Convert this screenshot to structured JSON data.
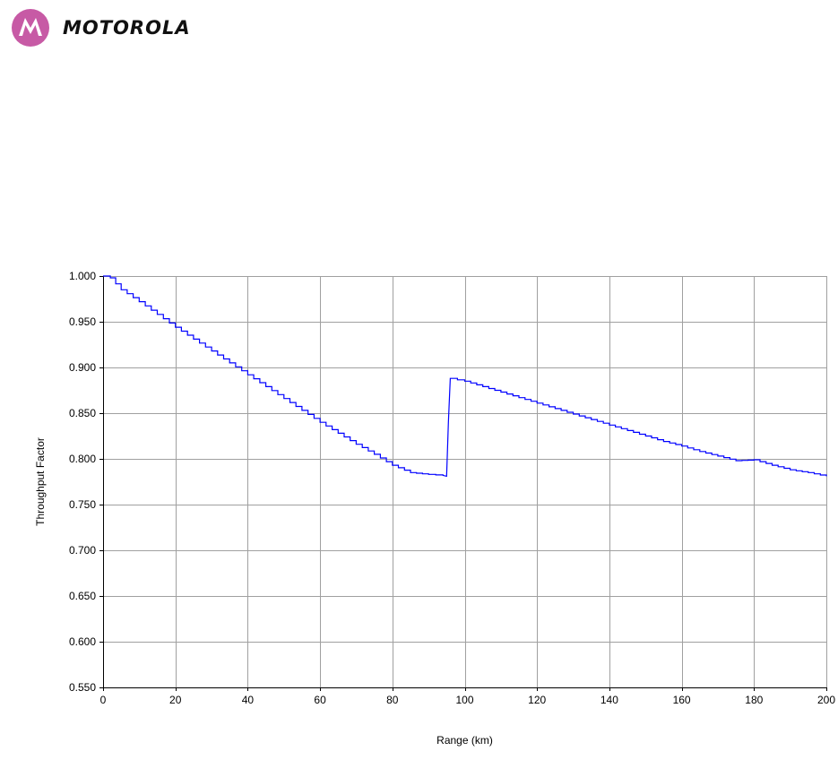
{
  "brand": {
    "name": "MOTOROLA",
    "logo_icon": "motorola-batwing-icon",
    "logo_color": "#c75aa5"
  },
  "chart_data": {
    "type": "line",
    "title": "",
    "xlabel": "Range (km)",
    "ylabel": "Throughput Factor",
    "xlim": [
      0,
      200
    ],
    "ylim": [
      0.55,
      1.0
    ],
    "xticks": [
      0,
      20,
      40,
      60,
      80,
      100,
      120,
      140,
      160,
      180,
      200
    ],
    "xtick_labels": [
      "0",
      "20",
      "40",
      "60",
      "80",
      "100",
      "120",
      "140",
      "160",
      "180",
      "200"
    ],
    "yticks": [
      0.55,
      0.6,
      0.65,
      0.7,
      0.75,
      0.8,
      0.85,
      0.9,
      0.95,
      1.0
    ],
    "ytick_labels": [
      "0.550",
      "0.600",
      "0.650",
      "0.700",
      "0.750",
      "0.800",
      "0.850",
      "0.900",
      "0.950",
      "1.000"
    ],
    "grid": true,
    "line_color": "#0000ff",
    "series": [
      {
        "x": [
          0,
          2,
          5,
          10,
          15,
          20,
          25,
          30,
          35,
          40,
          45,
          50,
          55,
          60,
          65,
          70,
          75,
          80,
          85,
          90,
          94,
          95,
          95.5,
          96,
          100,
          105,
          110,
          115,
          120,
          125,
          130,
          135,
          140,
          145,
          150,
          155,
          160,
          165,
          170,
          175,
          180,
          185,
          190,
          195,
          200
        ],
        "y": [
          1.0,
          0.998,
          0.985,
          0.972,
          0.958,
          0.944,
          0.931,
          0.918,
          0.905,
          0.892,
          0.879,
          0.866,
          0.853,
          0.84,
          0.828,
          0.816,
          0.805,
          0.793,
          0.785,
          0.783,
          0.782,
          0.781,
          0.84,
          0.888,
          0.885,
          0.879,
          0.873,
          0.867,
          0.861,
          0.855,
          0.849,
          0.843,
          0.837,
          0.831,
          0.825,
          0.819,
          0.814,
          0.808,
          0.803,
          0.798,
          0.799,
          0.793,
          0.788,
          0.785,
          0.781
        ]
      }
    ]
  }
}
